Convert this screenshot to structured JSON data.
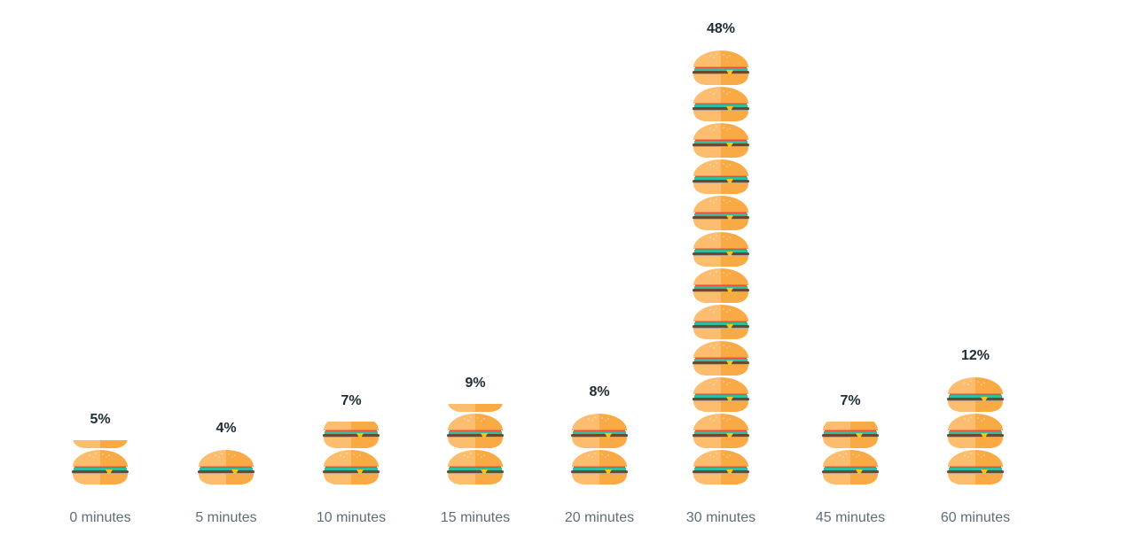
{
  "chart_data": {
    "type": "pictograph",
    "unit_icon": "burger-icon",
    "unit_value_percent": 4,
    "categories": [
      "0 minutes",
      "5 minutes",
      "10 minutes",
      "15 minutes",
      "20 minutes",
      "30 minutes",
      "45 minutes",
      "60 minutes"
    ],
    "values": [
      5,
      4,
      7,
      9,
      8,
      48,
      7,
      12
    ],
    "labels": [
      "5%",
      "4%",
      "7%",
      "9%",
      "8%",
      "48%",
      "7%",
      "12%"
    ],
    "colors": {
      "bun_light": "#fdbd6e",
      "bun_dark": "#f9aa45",
      "patty": "#6b4a2e",
      "lettuce": "#2dbf9d",
      "tomato": "#e84e3c",
      "cheese": "#f6c31c",
      "text": "#1f2d33",
      "axis_text": "#5e6e75"
    }
  }
}
